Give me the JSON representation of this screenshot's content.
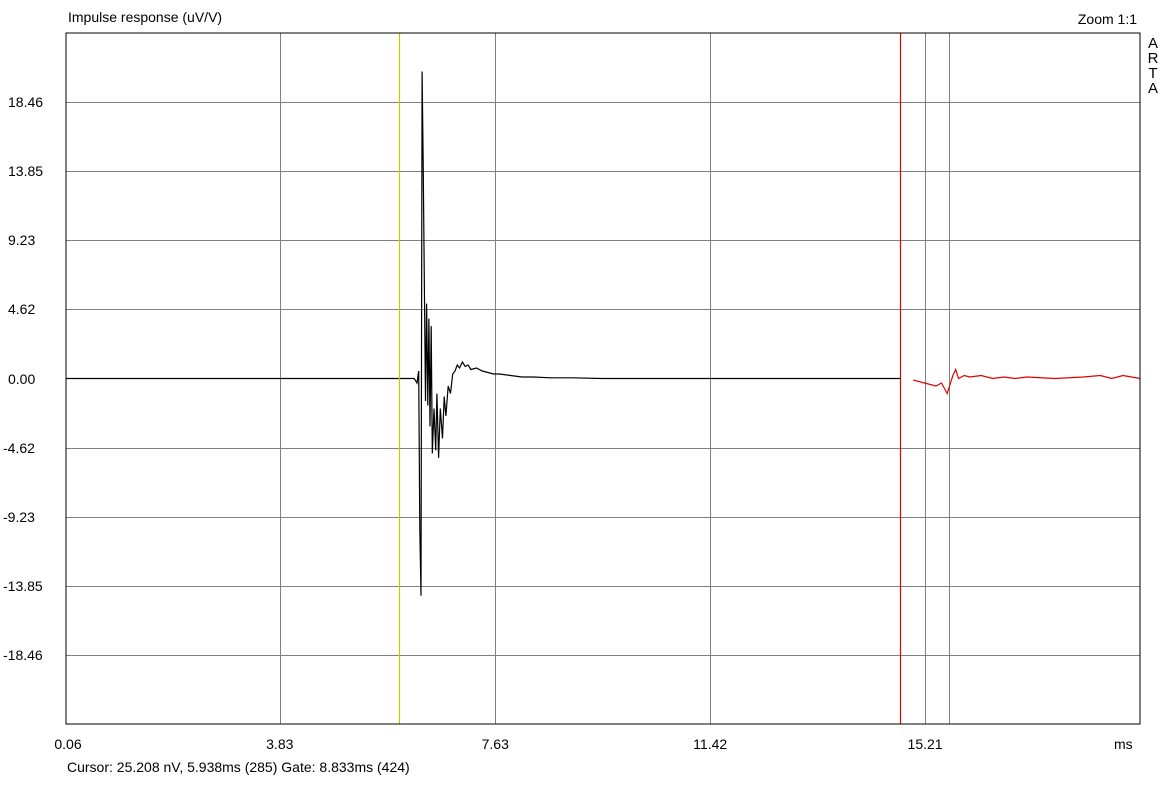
{
  "header": {
    "title": "Impulse response (uV/V)",
    "zoom": "Zoom 1:1"
  },
  "brand_letters": [
    "A",
    "R",
    "T",
    "A"
  ],
  "footer": {
    "status": "Cursor: 25.208 nV, 5.938ms (285)  Gate: 8.833ms (424)"
  },
  "chart_data": {
    "type": "line",
    "title": "Impulse response (uV/V)",
    "xlabel": "ms",
    "ylabel": "",
    "xlim": [
      0.06,
      19.0
    ],
    "ylim": [
      -23.07,
      23.07
    ],
    "x_ticks": [
      "0.06",
      "3.83",
      "7.63",
      "11.42",
      "15.21"
    ],
    "x_tick_values": [
      0.06,
      3.83,
      7.63,
      11.42,
      15.21
    ],
    "x_extra_gridlines": [
      15.63
    ],
    "y_ticks": [
      "18.46",
      "13.85",
      "9.23",
      "4.62",
      "0.00",
      "-4.62",
      "-9.23",
      "-13.85",
      "-18.46"
    ],
    "y_tick_values": [
      18.46,
      13.85,
      9.23,
      4.62,
      0.0,
      -4.62,
      -9.23,
      -13.85,
      -18.46
    ],
    "grid": true,
    "colors": {
      "grid": "#808080",
      "in_gate": "#000000",
      "out_gate": "#e00000",
      "cursor": "#c8c800",
      "gate": "#e00000"
    },
    "cursor_x_ms": 5.938,
    "gate_x_ms": 14.771,
    "series": [
      {
        "x": [
          0.06,
          5.8,
          6.0,
          6.1,
          6.2,
          6.25,
          6.28,
          6.3,
          6.32,
          6.34,
          6.36,
          6.38,
          6.4,
          6.42,
          6.44,
          6.46,
          6.48,
          6.5,
          6.52,
          6.55,
          6.58,
          6.6,
          6.63,
          6.66,
          6.7,
          6.73,
          6.76,
          6.8,
          6.84,
          6.88,
          6.92,
          6.96,
          7.0,
          7.05,
          7.1,
          7.15,
          7.2,
          7.3,
          7.4,
          7.5,
          7.6,
          7.7,
          7.9,
          8.1,
          8.3,
          8.6,
          9.0,
          9.5,
          10.0,
          11.0,
          12.0,
          13.0,
          14.0,
          14.77,
          15.0,
          15.2,
          15.4,
          15.5,
          15.6,
          15.65,
          15.7,
          15.75,
          15.8,
          15.9,
          16.0,
          16.2,
          16.4,
          16.6,
          16.8,
          17.0,
          17.5,
          18.0,
          18.3,
          18.5,
          18.7,
          19.0
        ],
        "y": [
          0.0,
          0.0,
          0.0,
          0.0,
          0.0,
          -0.3,
          0.5,
          -10.0,
          -14.5,
          20.5,
          14.3,
          6.0,
          -1.5,
          5.0,
          -1.8,
          4.0,
          -3.2,
          3.5,
          -5.0,
          -2.0,
          -4.8,
          -1.0,
          -5.3,
          -2.0,
          -4.0,
          -1.2,
          -2.5,
          -0.5,
          -1.0,
          0.3,
          0.5,
          0.9,
          0.7,
          1.1,
          0.8,
          0.9,
          0.6,
          0.7,
          0.5,
          0.4,
          0.3,
          0.3,
          0.2,
          0.1,
          0.1,
          0.05,
          0.05,
          0.0,
          0.0,
          0.0,
          0.0,
          0.0,
          0.0,
          0.0,
          -0.1,
          -0.3,
          -0.5,
          -0.3,
          -1.0,
          -0.4,
          0.2,
          0.6,
          0.0,
          0.2,
          0.1,
          0.2,
          0.0,
          0.1,
          0.0,
          0.1,
          0.0,
          0.1,
          0.2,
          0.0,
          0.2,
          0.0
        ]
      }
    ]
  }
}
